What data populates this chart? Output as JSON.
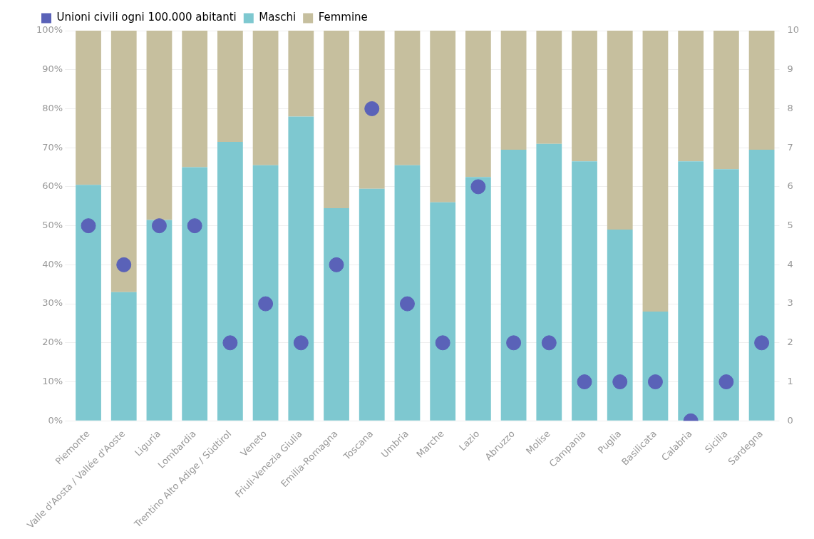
{
  "chart_data": {
    "type": "bar",
    "stacked": true,
    "categories": [
      "Piemonte",
      "Valle d'Aosta / Vallée d'Aoste",
      "Liguria",
      "Lombardia",
      "Trentino Alto Adige / Südtirol",
      "Veneto",
      "Friuli-Venezia Giulia",
      "Emilia-Romagna",
      "Toscana",
      "Umbria",
      "Marche",
      "Lazio",
      "Abruzzo",
      "Molise",
      "Campania",
      "Puglia",
      "Basilicata",
      "Calabria",
      "Sicilia",
      "Sardegna"
    ],
    "series": [
      {
        "name": "Unioni civili ogni 100.000 abitanti",
        "type": "scatter",
        "axis": "y2",
        "color": "#5a62b8",
        "values": [
          5,
          4,
          5,
          5,
          2,
          3,
          2,
          4,
          8,
          3,
          2,
          6,
          2,
          2,
          1,
          1,
          1,
          0,
          1,
          2
        ]
      },
      {
        "name": "Maschi",
        "color": "#7ec8d0",
        "values": [
          60.5,
          33,
          51.5,
          65,
          71.5,
          65.5,
          78,
          54.5,
          59.5,
          65.5,
          56,
          62.5,
          69.5,
          71,
          66.5,
          49,
          28,
          66.5,
          64.5,
          69.5
        ]
      },
      {
        "name": "Femmine",
        "color": "#c6bf9e",
        "values": [
          39.5,
          67,
          48.5,
          35,
          28.5,
          34.5,
          22,
          45.5,
          40.5,
          34.5,
          44,
          37.5,
          30.5,
          29,
          33.5,
          51,
          72,
          33.5,
          35.5,
          30.5
        ]
      }
    ],
    "ylim": [
      0,
      100
    ],
    "yticks": [
      {
        "value": 0,
        "label": "0%"
      },
      {
        "value": 10,
        "label": "10%"
      },
      {
        "value": 20,
        "label": "20%"
      },
      {
        "value": 30,
        "label": "30%"
      },
      {
        "value": 40,
        "label": "40%"
      },
      {
        "value": 50,
        "label": "50%"
      },
      {
        "value": 60,
        "label": "60%"
      },
      {
        "value": 70,
        "label": "70%"
      },
      {
        "value": 80,
        "label": "80%"
      },
      {
        "value": 90,
        "label": "90%"
      },
      {
        "value": 100,
        "label": "100%"
      }
    ],
    "y2lim": [
      0,
      10
    ],
    "y2ticks": [
      0,
      1,
      2,
      3,
      4,
      5,
      6,
      7,
      8,
      9,
      10
    ],
    "grid": "y",
    "legend": "top left",
    "marker": "circle"
  }
}
